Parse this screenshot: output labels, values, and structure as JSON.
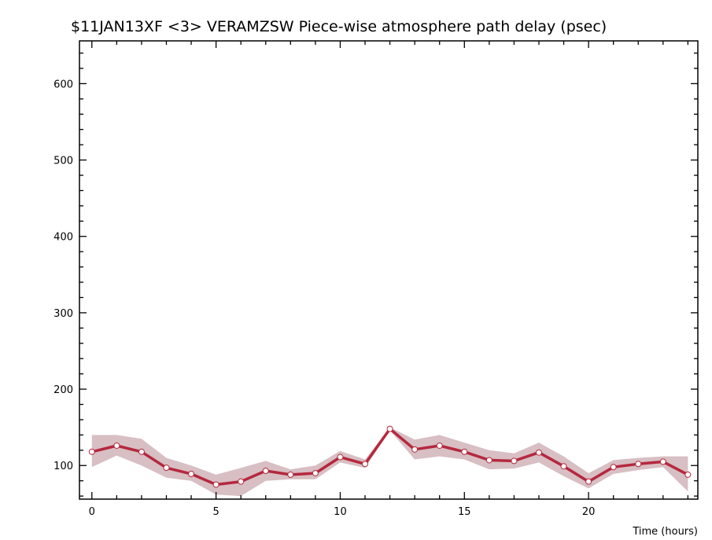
{
  "chart_data": {
    "type": "line",
    "title": "$11JAN13XF <3>  VERAMZSW  Piece-wise atmosphere path delay (psec)",
    "xlabel": "Time (hours)",
    "ylabel": "",
    "xlim": [
      -0.5,
      24.4
    ],
    "ylim": [
      56,
      656
    ],
    "x_ticks": [
      0,
      5,
      10,
      15,
      20
    ],
    "y_ticks": [
      100,
      200,
      300,
      400,
      500,
      600
    ],
    "grid": false,
    "colors": {
      "line": "#b5283e",
      "band": "#d7bfc3",
      "marker_fill": "#ffffff",
      "axis": "#000000"
    },
    "series": [
      {
        "x": [
          0,
          1,
          2,
          3,
          4,
          5,
          6,
          7,
          8,
          9,
          10,
          11,
          12,
          13,
          14,
          15,
          16,
          17,
          18,
          19,
          20,
          21,
          22,
          23,
          24
        ],
        "values": [
          118,
          126,
          118,
          97,
          89,
          75,
          79,
          93,
          88,
          90,
          111,
          102,
          148,
          121,
          126,
          118,
          107,
          106,
          117,
          99,
          79,
          98,
          102,
          105,
          88
        ],
        "upper": [
          140,
          140,
          135,
          110,
          100,
          88,
          97,
          106,
          95,
          100,
          119,
          108,
          150,
          134,
          140,
          130,
          120,
          116,
          130,
          112,
          90,
          107,
          110,
          112,
          112
        ],
        "lower": [
          98,
          113,
          100,
          84,
          80,
          62,
          60,
          80,
          82,
          82,
          104,
          97,
          146,
          108,
          112,
          108,
          95,
          96,
          104,
          86,
          70,
          89,
          94,
          98,
          66
        ]
      }
    ]
  }
}
